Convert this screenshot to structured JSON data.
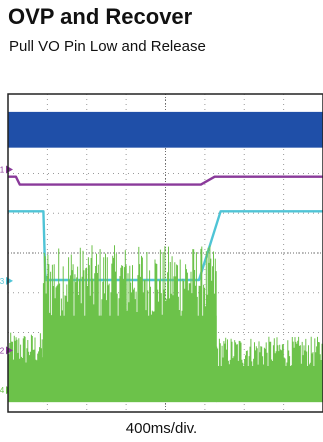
{
  "chart_data": {
    "type": "line",
    "title": "OVP and Recover",
    "subtitle": "Pull VO Pin Low and Release",
    "xlabel": "400ms/div.",
    "divisions": {
      "x": 8,
      "y": 8
    },
    "grid": true,
    "colors": {
      "background": "#ffffff",
      "frame": "#222222",
      "grid": "#9a9a9a",
      "ch1": "#1f4fa8",
      "ch2": "#8a3a9a",
      "ch3": "#4fc4d6",
      "ch4": "#6cc24a"
    },
    "channels": [
      {
        "id": "ch1",
        "marker": "1",
        "shape": "noise_band",
        "x": [
          0,
          8
        ],
        "top": 7.55,
        "bottom": 6.65
      },
      {
        "id": "ch2",
        "marker": "2",
        "shape": "polyline",
        "x": [
          0,
          0.2,
          0.3,
          4.9,
          5.25,
          8
        ],
        "y": [
          5.92,
          5.92,
          5.72,
          5.72,
          5.92,
          5.92
        ]
      },
      {
        "id": "ch3",
        "marker": "3",
        "shape": "polyline",
        "x": [
          0,
          0.9,
          0.95,
          4.85,
          5.4,
          8
        ],
        "y": [
          5.05,
          5.05,
          3.32,
          3.32,
          5.05,
          5.05
        ]
      },
      {
        "id": "ch4",
        "marker": "4",
        "shape": "noise_segments",
        "segments": [
          {
            "x": [
              0,
              0.9
            ],
            "low": 0.25,
            "high": 2.0
          },
          {
            "x": [
              0.9,
              5.3
            ],
            "low": 0.25,
            "high": 4.2
          },
          {
            "x": [
              5.3,
              8
            ],
            "low": 0.25,
            "high": 1.9
          }
        ]
      }
    ],
    "markers": [
      {
        "label": "1",
        "y": 6.1,
        "color": "#8a3a9a"
      },
      {
        "label": "3",
        "y": 3.3,
        "color": "#4fc4d6"
      },
      {
        "label": "2",
        "y": 1.55,
        "color": "#8a3a9a"
      },
      {
        "label": "4",
        "y": 0.55,
        "color": "#6cc24a"
      }
    ]
  }
}
